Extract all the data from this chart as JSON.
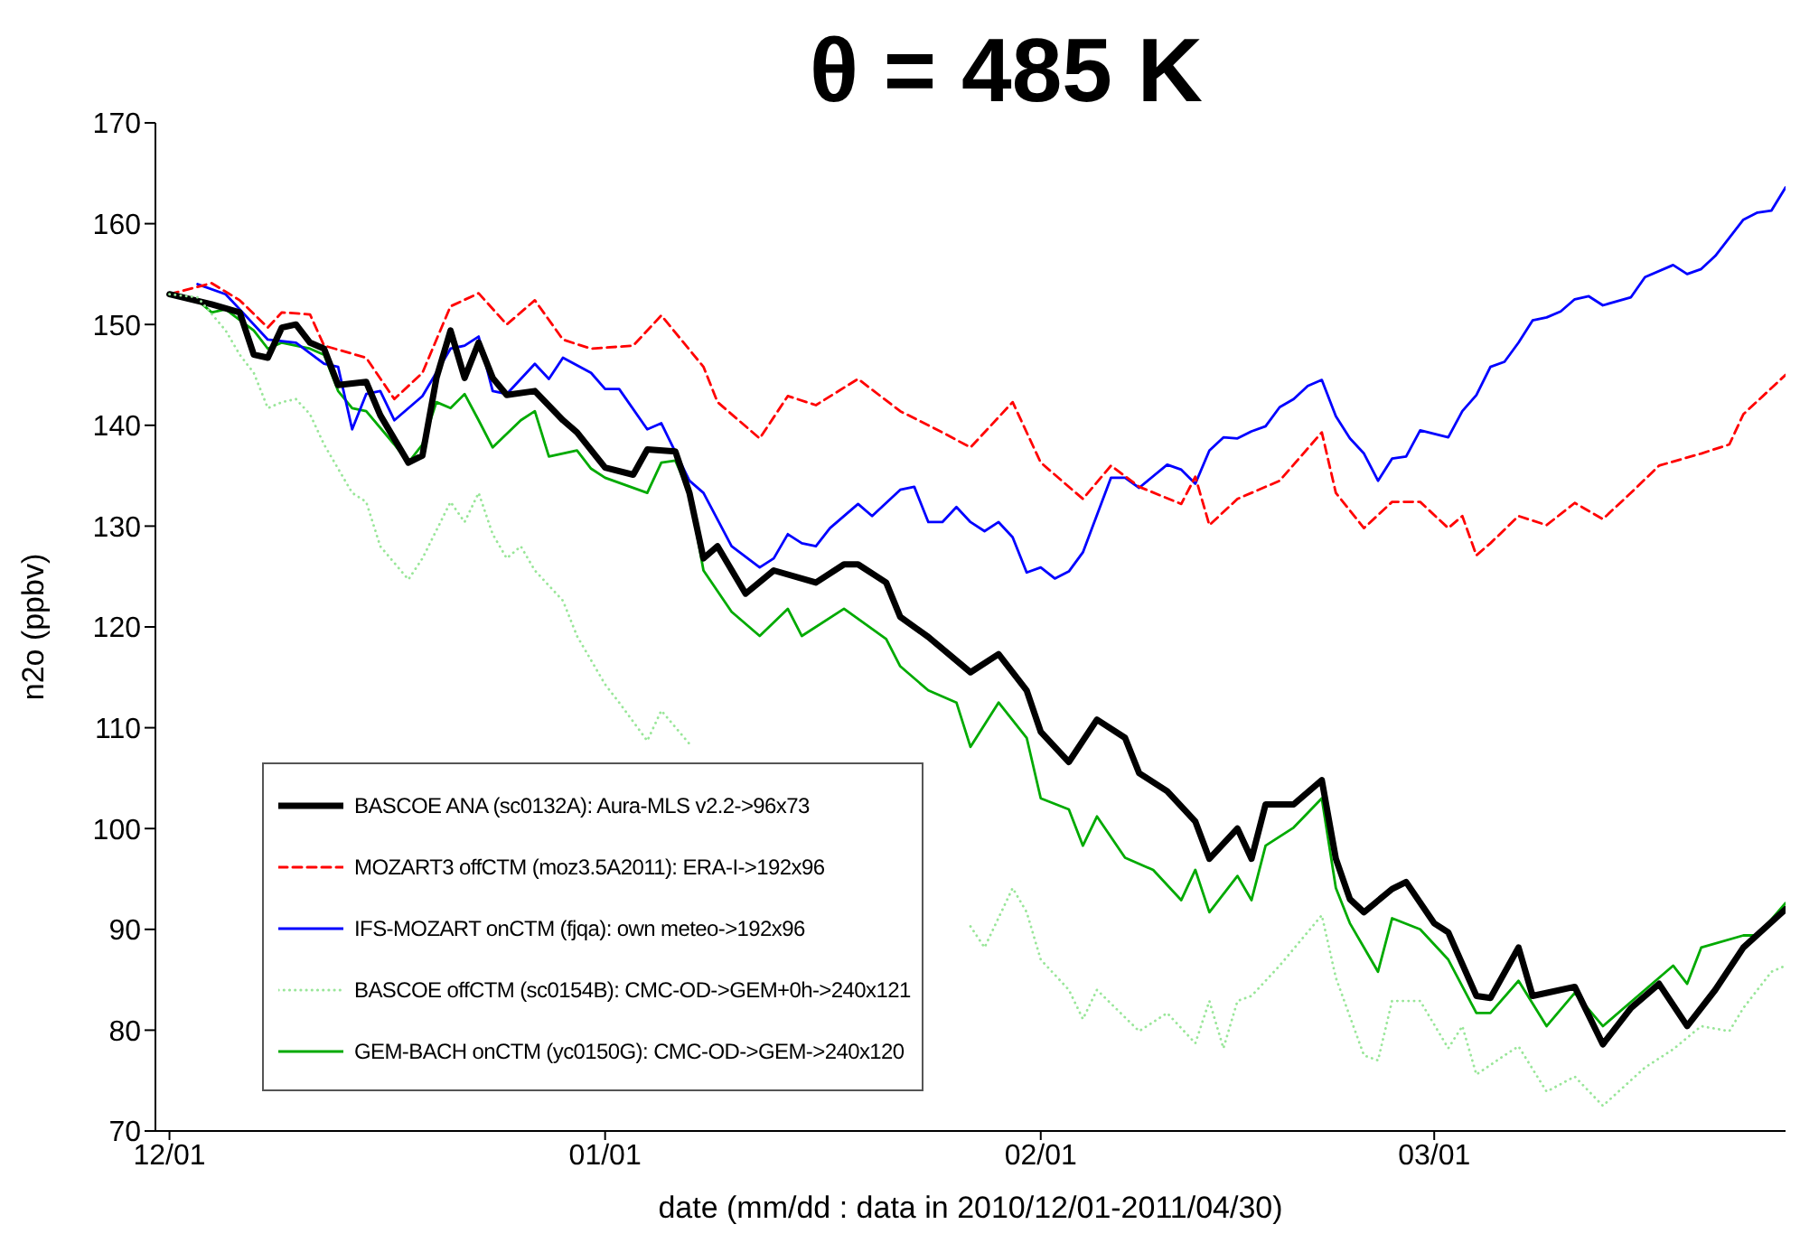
{
  "chart_data": {
    "type": "line",
    "title": "θ = 485 K",
    "xlabel": "date (mm/dd : data in 2010/12/01-2011/04/30)",
    "ylabel": "n2o (ppbv)",
    "xlim": [
      "2010-11-30",
      "2011-03-26"
    ],
    "xticks": [
      {
        "value": "2010-12-01",
        "label": "12/01"
      },
      {
        "value": "2011-01-01",
        "label": "01/01"
      },
      {
        "value": "2011-02-01",
        "label": "02/01"
      },
      {
        "value": "2011-03-01",
        "label": "03/01"
      }
    ],
    "ylim": [
      70,
      170
    ],
    "yticks": [
      70,
      80,
      90,
      100,
      110,
      120,
      130,
      140,
      150,
      160,
      170
    ],
    "grid": false,
    "legend": "bottom left",
    "marker": "none",
    "series": [
      {
        "name": "BASCOE ANA (sc0132A): Aura-MLS v2.2->96x73",
        "color": "#000000",
        "line_style": "solid",
        "x": [
          "2010-12-01",
          "2010-12-04",
          "2010-12-06",
          "2010-12-07",
          "2010-12-08",
          "2010-12-09",
          "2010-12-10",
          "2010-12-11",
          "2010-12-12",
          "2010-12-13",
          "2010-12-15",
          "2010-12-16",
          "2010-12-18",
          "2010-12-19",
          "2010-12-20",
          "2010-12-21",
          "2010-12-22",
          "2010-12-23",
          "2010-12-24",
          "2010-12-25",
          "2010-12-27",
          "2010-12-29",
          "2010-12-30",
          "2011-01-01",
          "2011-01-03",
          "2011-01-04",
          "2011-01-06",
          "2011-01-07",
          "2011-01-08",
          "2011-01-09",
          "2011-01-11",
          "2011-01-13",
          "2011-01-16",
          "2011-01-18",
          "2011-01-19",
          "2011-01-21",
          "2011-01-22",
          "2011-01-24",
          "2011-01-27",
          "2011-01-29",
          "2011-01-31",
          "2011-02-01",
          "2011-02-03",
          "2011-02-05",
          "2011-02-07",
          "2011-02-08",
          "2011-02-10",
          "2011-02-12",
          "2011-02-13",
          "2011-02-15",
          "2011-02-16",
          "2011-02-17",
          "2011-02-19",
          "2011-02-21",
          "2011-02-22",
          "2011-02-23",
          "2011-02-24",
          "2011-02-26",
          "2011-02-27",
          "2011-03-01",
          "2011-03-02",
          "2011-03-04",
          "2011-03-05",
          "2011-03-07",
          "2011-03-08",
          "2011-03-11",
          "2011-03-13",
          "2011-03-15",
          "2011-03-17",
          "2011-03-19",
          "2011-03-21",
          "2011-03-23",
          "2011-03-26"
        ],
        "values": [
          153,
          152,
          151.2,
          147,
          146.7,
          149.7,
          150,
          148.2,
          147.6,
          144,
          144.3,
          141,
          136.3,
          137,
          144.7,
          149.4,
          144.7,
          148.2,
          144.7,
          143,
          143.4,
          140.5,
          139.3,
          135.8,
          135.1,
          137.6,
          137.4,
          133.3,
          126.8,
          128,
          123.3,
          125.6,
          124.4,
          126.2,
          126.2,
          124.4,
          121,
          119,
          115.5,
          117.3,
          113.7,
          109.6,
          106.6,
          110.8,
          109,
          105.5,
          103.7,
          100.7,
          97,
          100,
          97,
          102.4,
          102.4,
          104.8,
          97,
          93,
          91.7,
          94,
          94.7,
          90.6,
          89.7,
          83.4,
          83.2,
          88.2,
          83.4,
          84.3,
          78.6,
          82.2,
          84.6,
          80.4,
          84,
          88.2,
          92
        ]
      },
      {
        "name": "MOZART3 offCTM (moz3.5A2011): ERA-I->192x96",
        "color": "#ff0000",
        "line_style": "dashed",
        "x": [
          "2010-12-01",
          "2010-12-04",
          "2010-12-06",
          "2010-12-08",
          "2010-12-09",
          "2010-12-11",
          "2010-12-12",
          "2010-12-15",
          "2010-12-17",
          "2010-12-19",
          "2010-12-21",
          "2010-12-23",
          "2010-12-25",
          "2010-12-27",
          "2010-12-29",
          "2010-12-31",
          "2011-01-03",
          "2011-01-05",
          "2011-01-08",
          "2011-01-09",
          "2011-01-12",
          "2011-01-14",
          "2011-01-16",
          "2011-01-19",
          "2011-01-22",
          "2011-01-25",
          "2011-01-27",
          "2011-01-30",
          "2011-02-01",
          "2011-02-04",
          "2011-02-06",
          "2011-02-08",
          "2011-02-11",
          "2011-02-12",
          "2011-02-13",
          "2011-02-15",
          "2011-02-18",
          "2011-02-21",
          "2011-02-22",
          "2011-02-24",
          "2011-02-26",
          "2011-02-28",
          "2011-03-02",
          "2011-03-03",
          "2011-03-04",
          "2011-03-05",
          "2011-03-07",
          "2011-03-09",
          "2011-03-11",
          "2011-03-13",
          "2011-03-15",
          "2011-03-17",
          "2011-03-20",
          "2011-03-22",
          "2011-03-23",
          "2011-03-26"
        ],
        "values": [
          153,
          154.1,
          152.4,
          149.7,
          151.2,
          151,
          147.9,
          146.7,
          142.6,
          145.2,
          151.8,
          153.1,
          150,
          152.4,
          148.5,
          147.6,
          147.9,
          150.9,
          145.8,
          142.3,
          138.7,
          142.9,
          142,
          144.6,
          141.4,
          139.3,
          137.8,
          142.3,
          136.3,
          132.7,
          136,
          133.9,
          132.2,
          134.9,
          130.1,
          132.7,
          134.5,
          139.3,
          133.3,
          129.8,
          132.4,
          132.4,
          129.8,
          131,
          127.1,
          128.3,
          131,
          130.1,
          132.3,
          130.7,
          133.3,
          136,
          137.2,
          138.1,
          141.1,
          145
        ]
      },
      {
        "name": "IFS-MOZART onCTM (fjqa): own meteo->192x96",
        "color": "#0000ff",
        "line_style": "solid",
        "x": [
          "2010-12-03",
          "2010-12-05",
          "2010-12-08",
          "2010-12-10",
          "2010-12-12",
          "2010-12-13",
          "2010-12-14",
          "2010-12-15",
          "2010-12-16",
          "2010-12-17",
          "2010-12-19",
          "2010-12-21",
          "2010-12-22",
          "2010-12-23",
          "2010-12-24",
          "2010-12-25",
          "2010-12-27",
          "2010-12-28",
          "2010-12-29",
          "2010-12-31",
          "2011-01-01",
          "2011-01-02",
          "2011-01-04",
          "2011-01-05",
          "2011-01-07",
          "2011-01-08",
          "2011-01-10",
          "2011-01-12",
          "2011-01-13",
          "2011-01-14",
          "2011-01-15",
          "2011-01-16",
          "2011-01-17",
          "2011-01-19",
          "2011-01-20",
          "2011-01-22",
          "2011-01-23",
          "2011-01-24",
          "2011-01-25",
          "2011-01-26",
          "2011-01-27",
          "2011-01-28",
          "2011-01-29",
          "2011-01-30",
          "2011-01-31",
          "2011-02-01",
          "2011-02-02",
          "2011-02-03",
          "2011-02-04",
          "2011-02-06",
          "2011-02-07",
          "2011-02-08",
          "2011-02-10",
          "2011-02-11",
          "2011-02-12",
          "2011-02-13",
          "2011-02-14",
          "2011-02-15",
          "2011-02-16",
          "2011-02-17",
          "2011-02-18",
          "2011-02-19",
          "2011-02-20",
          "2011-02-21",
          "2011-02-22",
          "2011-02-23",
          "2011-02-24",
          "2011-02-25",
          "2011-02-26",
          "2011-02-27",
          "2011-02-28",
          "2011-03-02",
          "2011-03-03",
          "2011-03-04",
          "2011-03-05",
          "2011-03-06",
          "2011-03-07",
          "2011-03-08",
          "2011-03-09",
          "2011-03-10",
          "2011-03-11",
          "2011-03-12",
          "2011-03-13",
          "2011-03-15",
          "2011-03-16",
          "2011-03-18",
          "2011-03-19",
          "2011-03-20",
          "2011-03-21",
          "2011-03-23",
          "2011-03-24",
          "2011-03-25",
          "2011-03-26"
        ],
        "values": [
          154,
          153,
          148.5,
          148.2,
          146.1,
          145.8,
          139.6,
          143.1,
          143.4,
          140.5,
          142.9,
          147.6,
          147.9,
          148.8,
          143.4,
          143.1,
          146.1,
          144.6,
          146.7,
          145.2,
          143.6,
          143.6,
          139.6,
          140.2,
          134.5,
          133.3,
          128,
          125.9,
          126.8,
          129.2,
          128.3,
          128,
          129.8,
          132.2,
          131,
          133.6,
          133.9,
          130.4,
          130.4,
          131.9,
          130.4,
          129.5,
          130.4,
          128.9,
          125.4,
          125.9,
          124.8,
          125.5,
          127.4,
          134.8,
          134.8,
          133.8,
          136.1,
          135.6,
          134.2,
          137.5,
          138.8,
          138.7,
          139.4,
          139.9,
          141.8,
          142.6,
          143.9,
          144.5,
          140.9,
          138.7,
          137.2,
          134.5,
          136.7,
          136.9,
          139.5,
          138.8,
          141.4,
          143,
          145.8,
          146.3,
          148.2,
          150.4,
          150.7,
          151.3,
          152.5,
          152.8,
          151.9,
          152.7,
          154.7,
          155.9,
          155,
          155.5,
          156.8,
          160.4,
          161.1,
          161.3,
          163.6
        ]
      },
      {
        "name": "BASCOE offCTM (sc0154B): CMC-OD->GEM+0h->240x121",
        "color": "#99e699",
        "line_style": "dotted",
        "x": [
          "2010-12-01",
          "2010-12-03",
          "2010-12-05",
          "2010-12-06",
          "2010-12-07",
          "2010-12-08",
          "2010-12-09",
          "2010-12-10",
          "2010-12-11",
          "2010-12-12",
          "2010-12-13",
          "2010-12-14",
          "2010-12-15",
          "2010-12-16",
          "2010-12-18",
          "2010-12-19",
          "2010-12-21",
          "2010-12-22",
          "2010-12-23",
          "2010-12-24",
          "2010-12-25",
          "2010-12-26",
          "2010-12-27",
          "2010-12-29",
          "2010-12-30",
          "2010-12-31",
          "2011-01-01",
          "2011-01-02",
          "2011-01-04",
          "2011-01-05",
          "2011-01-07",
          "2011-01-17",
          "2011-01-27",
          "2011-01-28",
          "2011-01-30",
          "2011-01-31",
          "2011-02-01",
          "2011-02-03",
          "2011-02-04",
          "2011-02-05",
          "2011-02-08",
          "2011-02-10",
          "2011-02-12",
          "2011-02-13",
          "2011-02-14",
          "2011-02-15",
          "2011-02-16",
          "2011-02-18",
          "2011-02-21",
          "2011-02-22",
          "2011-02-24",
          "2011-02-25",
          "2011-02-26",
          "2011-02-28",
          "2011-03-02",
          "2011-03-03",
          "2011-03-04",
          "2011-03-06",
          "2011-03-07",
          "2011-03-09",
          "2011-03-11",
          "2011-03-13",
          "2011-03-16",
          "2011-03-18",
          "2011-03-20",
          "2011-03-22",
          "2011-03-23",
          "2011-03-25",
          "2011-03-26"
        ],
        "values": [
          153,
          152.7,
          149.4,
          147,
          145.2,
          141.7,
          142.3,
          142.6,
          141.1,
          138.1,
          135.7,
          133.3,
          132.4,
          128,
          124.7,
          126.8,
          132.4,
          130.4,
          133.3,
          129.2,
          126.8,
          128,
          125.6,
          122.6,
          119.1,
          116.7,
          114.3,
          112.5,
          108.7,
          111.7,
          108.4,
          null,
          90.3,
          88.2,
          94.1,
          91.7,
          87,
          84,
          81.1,
          84,
          79.9,
          81.7,
          78.7,
          82.9,
          78.2,
          82.9,
          83.4,
          86.4,
          91.4,
          85.2,
          77.5,
          77,
          82.9,
          82.9,
          78.2,
          80.4,
          75.6,
          77.5,
          78.4,
          73.9,
          75.4,
          72.5,
          76.3,
          78.1,
          80.4,
          79.9,
          82.2,
          85.8,
          86.4
        ]
      },
      {
        "name": "GEM-BACH onCTM (yc0150G): CMC-OD->GEM->240x120",
        "color": "#00aa00",
        "line_style": "solid",
        "x": [
          "2010-12-01",
          "2010-12-03",
          "2010-12-04",
          "2010-12-05",
          "2010-12-07",
          "2010-12-08",
          "2010-12-09",
          "2010-12-11",
          "2010-12-12",
          "2010-12-13",
          "2010-12-14",
          "2010-12-15",
          "2010-12-17",
          "2010-12-18",
          "2010-12-19",
          "2010-12-20",
          "2010-12-21",
          "2010-12-22",
          "2010-12-23",
          "2010-12-24",
          "2010-12-26",
          "2010-12-27",
          "2010-12-28",
          "2010-12-30",
          "2010-12-31",
          "2011-01-01",
          "2011-01-04",
          "2011-01-05",
          "2011-01-06",
          "2011-01-07",
          "2011-01-08",
          "2011-01-10",
          "2011-01-12",
          "2011-01-14",
          "2011-01-15",
          "2011-01-18",
          "2011-01-21",
          "2011-01-22",
          "2011-01-24",
          "2011-01-26",
          "2011-01-27",
          "2011-01-29",
          "2011-01-31",
          "2011-02-01",
          "2011-02-03",
          "2011-02-04",
          "2011-02-05",
          "2011-02-07",
          "2011-02-09",
          "2011-02-11",
          "2011-02-12",
          "2011-02-13",
          "2011-02-15",
          "2011-02-16",
          "2011-02-17",
          "2011-02-19",
          "2011-02-21",
          "2011-02-22",
          "2011-02-23",
          "2011-02-25",
          "2011-02-26",
          "2011-02-28",
          "2011-03-02",
          "2011-03-04",
          "2011-03-05",
          "2011-03-07",
          "2011-03-09",
          "2011-03-11",
          "2011-03-13",
          "2011-03-16",
          "2011-03-18",
          "2011-03-19",
          "2011-03-20",
          "2011-03-23",
          "2011-03-24",
          "2011-03-26"
        ],
        "values": [
          153,
          152.4,
          151.2,
          151.5,
          149.4,
          147.6,
          148.2,
          147.6,
          147,
          143.4,
          141.7,
          141.4,
          138.1,
          136.3,
          138.1,
          142.3,
          141.7,
          143.1,
          140.5,
          137.8,
          140.5,
          141.4,
          136.9,
          137.5,
          135.7,
          134.8,
          133.3,
          136.3,
          136.5,
          133.3,
          125.6,
          121.5,
          119.1,
          121.8,
          119.1,
          121.8,
          118.8,
          116.1,
          113.7,
          112.5,
          108.1,
          112.5,
          109,
          103,
          101.9,
          98.3,
          101.2,
          97.1,
          95.9,
          92.9,
          95.9,
          91.7,
          95.3,
          92.9,
          98.3,
          100.1,
          103,
          94.1,
          90.6,
          85.8,
          91.1,
          90,
          87,
          81.7,
          81.7,
          84.9,
          80.4,
          83.7,
          80.4,
          84,
          86.4,
          84.6,
          88.2,
          89.4,
          89.4,
          92.6
        ]
      }
    ]
  }
}
